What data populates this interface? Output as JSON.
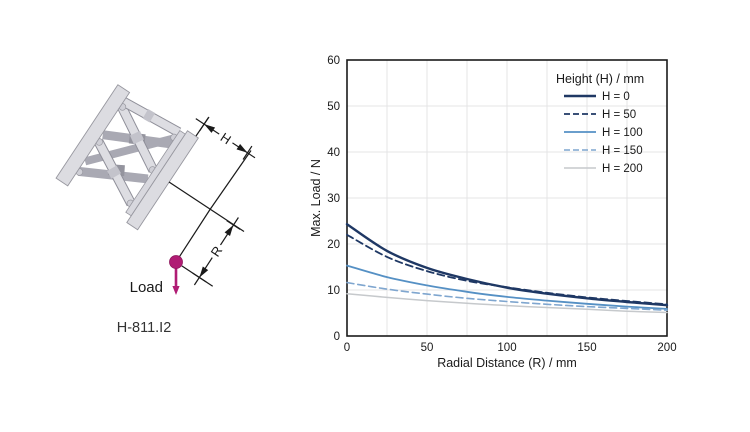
{
  "figure": {
    "model_label": "H-811.I2",
    "load_label": "Load",
    "h_dim_label": "H",
    "r_dim_label": "R",
    "accent_color": "#B01C74"
  },
  "chart_data": {
    "type": "line",
    "title": "",
    "xlabel": "Radial Distance (R) / mm",
    "ylabel": "Max. Load / N",
    "xlim": [
      0,
      200
    ],
    "ylim": [
      0,
      60
    ],
    "x_ticks": [
      0,
      50,
      100,
      150,
      200
    ],
    "y_ticks": [
      0,
      10,
      20,
      30,
      40,
      50,
      60
    ],
    "x_grid_step": 25,
    "y_grid_step": 10,
    "grid": true,
    "legend_title": "Height (H) / mm",
    "legend_position": "top-right",
    "x": [
      0,
      25,
      50,
      75,
      100,
      125,
      150,
      175,
      200
    ],
    "series": [
      {
        "name": "H = 0",
        "values": [
          24.3,
          18.5,
          14.8,
          12.4,
          10.5,
          9.2,
          8.2,
          7.4,
          6.7
        ],
        "color": "#1F3864",
        "line_style": "solid",
        "width": 2.4
      },
      {
        "name": "H = 50",
        "values": [
          22.0,
          17.2,
          14.1,
          12.0,
          10.6,
          9.4,
          8.4,
          7.6,
          6.9
        ],
        "color": "#1F3864",
        "line_style": "dashed",
        "width": 1.8
      },
      {
        "name": "H = 100",
        "values": [
          15.3,
          12.8,
          11.0,
          9.6,
          8.5,
          7.7,
          7.0,
          6.4,
          5.9
        ],
        "color": "#5590C4",
        "line_style": "solid",
        "width": 1.8
      },
      {
        "name": "H = 150",
        "values": [
          11.6,
          10.2,
          9.1,
          8.2,
          7.5,
          6.9,
          6.4,
          6.0,
          5.6
        ],
        "color": "#7FA6CF",
        "line_style": "dashed",
        "width": 1.6
      },
      {
        "name": "H = 200",
        "values": [
          9.2,
          8.4,
          7.7,
          7.1,
          6.6,
          6.2,
          5.8,
          5.4,
          5.1
        ],
        "color": "#C6C9CC",
        "line_style": "solid",
        "width": 1.5
      }
    ]
  }
}
